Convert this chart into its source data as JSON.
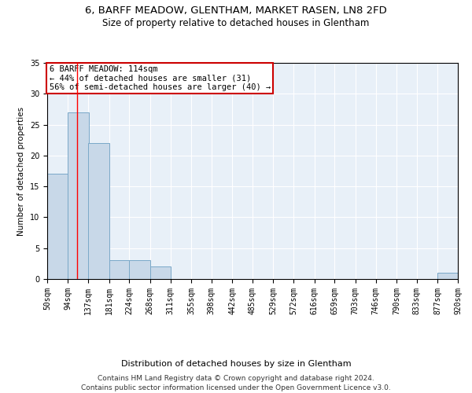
{
  "title": "6, BARFF MEADOW, GLENTHAM, MARKET RASEN, LN8 2FD",
  "subtitle": "Size of property relative to detached houses in Glentham",
  "xlabel": "Distribution of detached houses by size in Glentham",
  "ylabel": "Number of detached properties",
  "bins": [
    50,
    94,
    137,
    181,
    224,
    268,
    311,
    355,
    398,
    442,
    485,
    529,
    572,
    616,
    659,
    703,
    746,
    790,
    833,
    877,
    920
  ],
  "counts": [
    17,
    27,
    22,
    3,
    3,
    2,
    0,
    0,
    0,
    0,
    0,
    0,
    0,
    0,
    0,
    0,
    0,
    0,
    0,
    1
  ],
  "bar_color": "#c8d8e8",
  "bar_edge_color": "#7aa8c8",
  "bar_edge_width": 0.7,
  "red_line_x": 114,
  "ylim": [
    0,
    35
  ],
  "yticks": [
    0,
    5,
    10,
    15,
    20,
    25,
    30,
    35
  ],
  "annotation_text": "6 BARFF MEADOW: 114sqm\n← 44% of detached houses are smaller (31)\n56% of semi-detached houses are larger (40) →",
  "annotation_box_color": "#ffffff",
  "annotation_box_edge_color": "#cc0000",
  "background_color": "#e8f0f8",
  "grid_color": "#ffffff",
  "footnote_line1": "Contains HM Land Registry data © Crown copyright and database right 2024.",
  "footnote_line2": "Contains public sector information licensed under the Open Government Licence v3.0.",
  "title_fontsize": 9.5,
  "subtitle_fontsize": 8.5,
  "xlabel_fontsize": 8,
  "ylabel_fontsize": 7.5,
  "tick_fontsize": 7,
  "annotation_fontsize": 7.5,
  "footnote_fontsize": 6.5
}
